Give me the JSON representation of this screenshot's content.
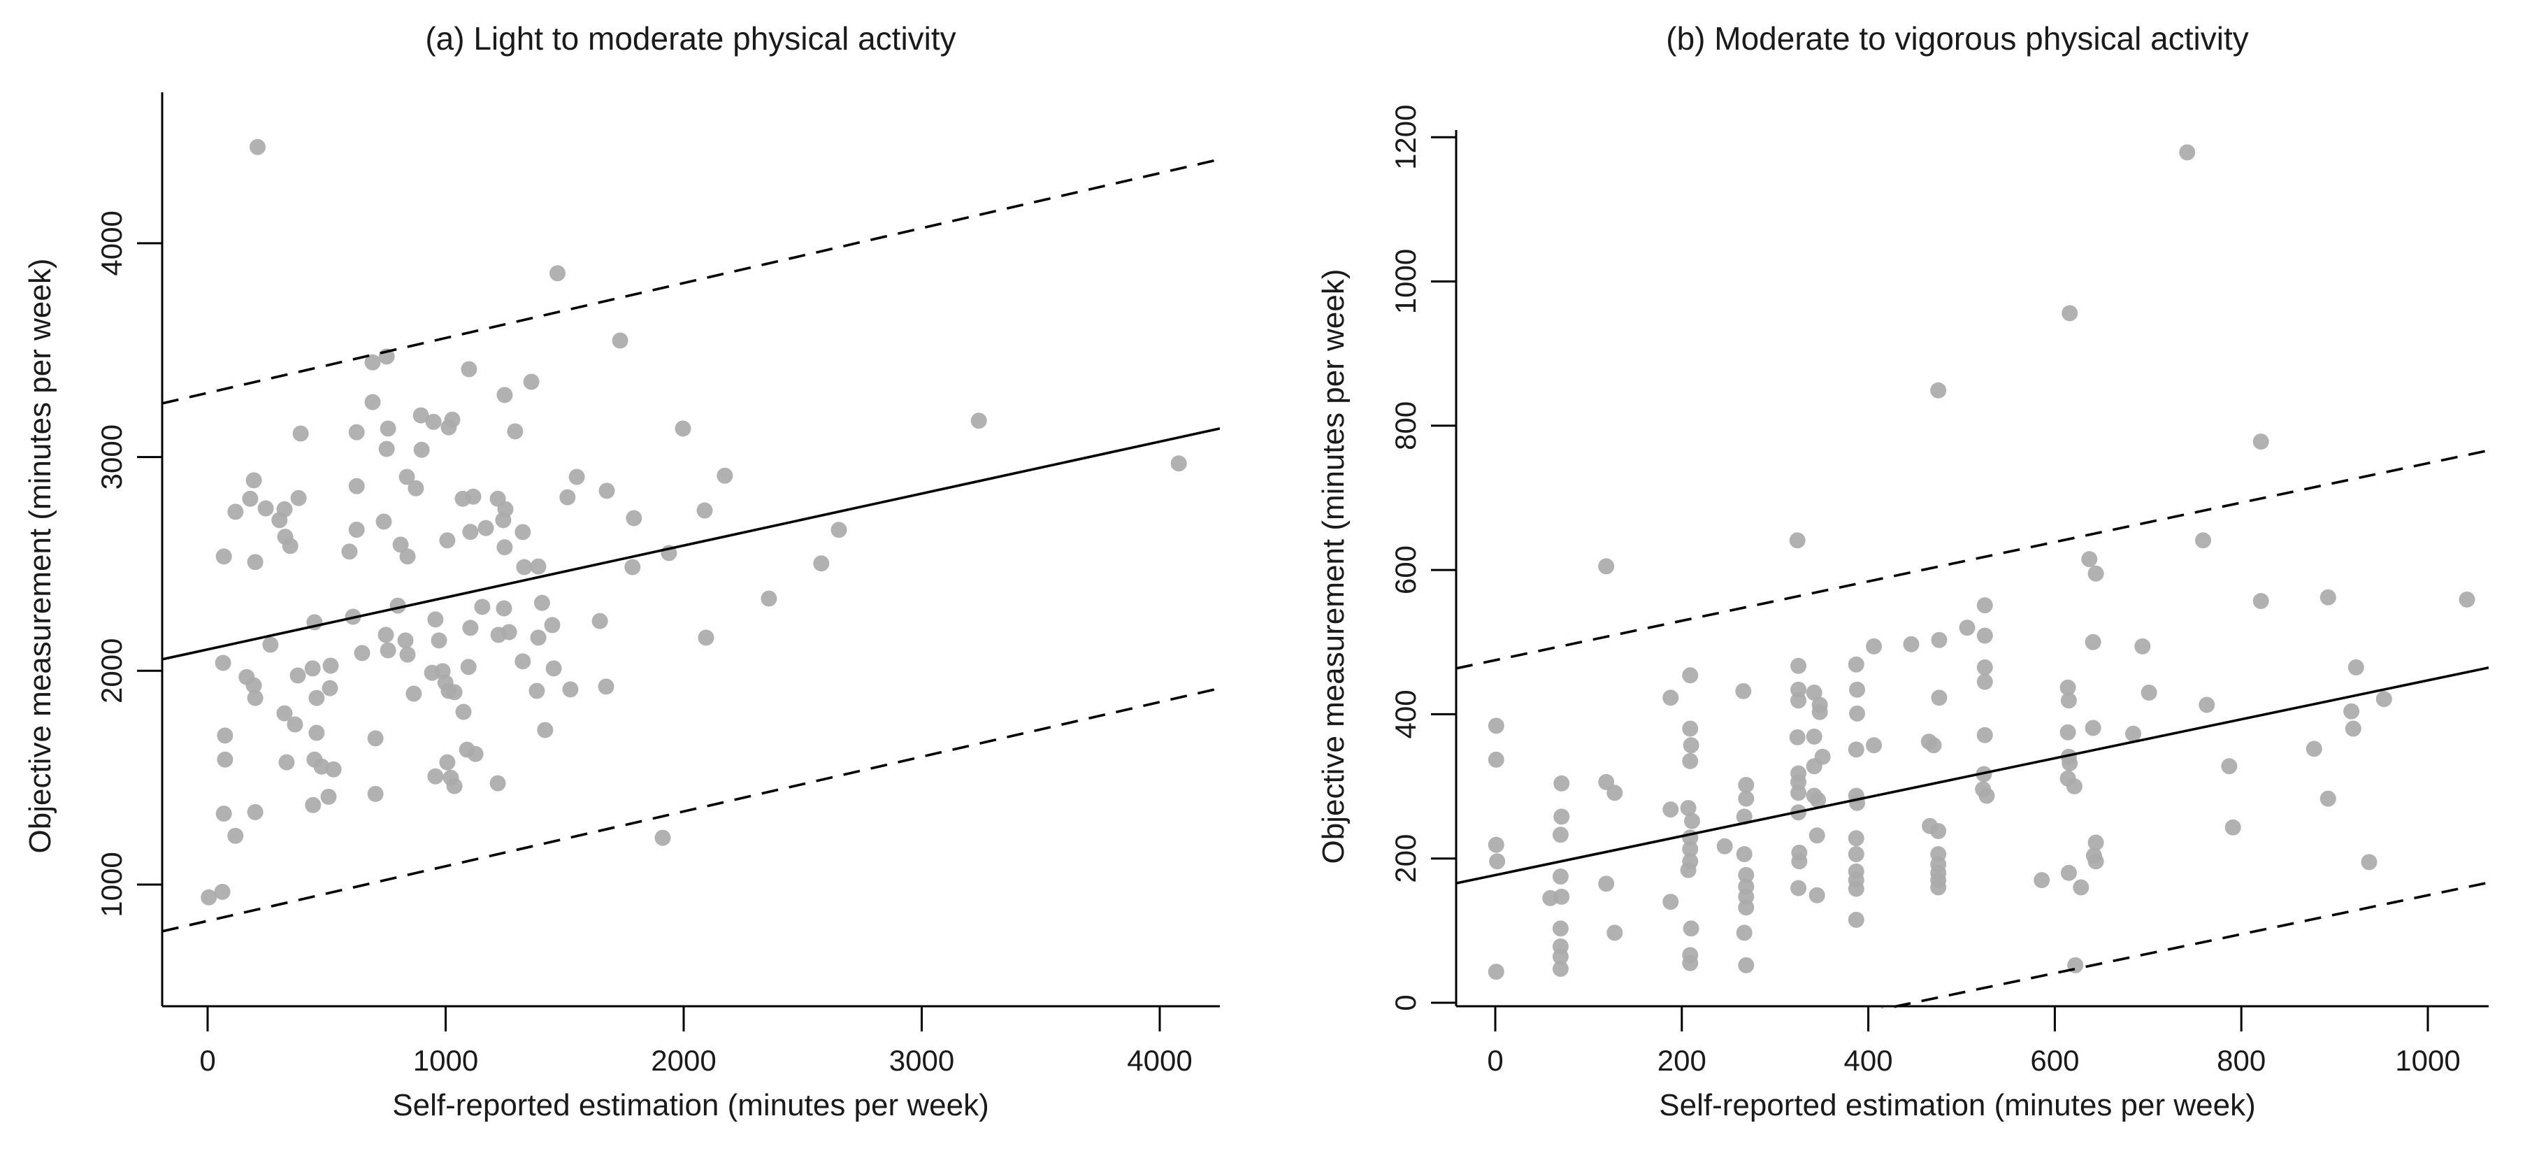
{
  "figure": {
    "background": "#ffffff",
    "point_color": "#aaaaaa",
    "line_color": "#000000",
    "axis_color": "#000000"
  },
  "chart_data": [
    {
      "type": "scatter",
      "title": "(a) Light to moderate physical activity",
      "xlabel": "Self-reported estimation (minutes per week)",
      "ylabel": "Objective measurement (minutes per week)",
      "x_ticks": [
        0,
        1000,
        2000,
        3000,
        4000
      ],
      "y_ticks": [
        1000,
        2000,
        3000,
        4000
      ],
      "xlim": [
        0,
        4000
      ],
      "ylim": [
        1000,
        4000
      ],
      "grid": false,
      "legend": "none",
      "lines": [
        {
          "name": "regression-line",
          "style": "solid",
          "intercept": 2100,
          "slope": 0.243
        },
        {
          "name": "upper-limit-line",
          "style": "dashed",
          "intercept": 3300,
          "slope": 0.257
        },
        {
          "name": "lower-limit-line",
          "style": "dashed",
          "intercept": 830,
          "slope": 0.256
        }
      ],
      "points": [
        [
          210,
          4450
        ],
        [
          693,
          3443
        ],
        [
          752,
          3470
        ],
        [
          1098,
          3411
        ],
        [
          1248,
          3290
        ],
        [
          693,
          3257
        ],
        [
          896,
          3195
        ],
        [
          949,
          3165
        ],
        [
          1028,
          3175
        ],
        [
          1013,
          3139
        ],
        [
          391,
          3110
        ],
        [
          626,
          3116
        ],
        [
          758,
          3133
        ],
        [
          1292,
          3120
        ],
        [
          752,
          3038
        ],
        [
          899,
          3034
        ],
        [
          837,
          2907
        ],
        [
          626,
          2864
        ],
        [
          875,
          2854
        ],
        [
          1072,
          2805
        ],
        [
          194,
          2891
        ],
        [
          117,
          2744
        ],
        [
          179,
          2805
        ],
        [
          244,
          2760
        ],
        [
          323,
          2756
        ],
        [
          382,
          2808
        ],
        [
          302,
          2705
        ],
        [
          326,
          2627
        ],
        [
          347,
          2584
        ],
        [
          626,
          2660
        ],
        [
          596,
          2558
        ],
        [
          740,
          2698
        ],
        [
          811,
          2590
        ],
        [
          840,
          2535
        ],
        [
          68,
          2535
        ],
        [
          200,
          2509
        ],
        [
          1116,
          2815
        ],
        [
          1219,
          2805
        ],
        [
          1251,
          2756
        ],
        [
          1104,
          2650
        ],
        [
          1169,
          2668
        ],
        [
          1242,
          2705
        ],
        [
          1007,
          2610
        ],
        [
          1248,
          2578
        ],
        [
          1470,
          3860
        ],
        [
          1733,
          3545
        ],
        [
          1360,
          3352
        ],
        [
          1997,
          3133
        ],
        [
          1551,
          2907
        ],
        [
          2173,
          2913
        ],
        [
          1512,
          2812
        ],
        [
          1677,
          2842
        ],
        [
          1791,
          2714
        ],
        [
          2088,
          2750
        ],
        [
          1324,
          2649
        ],
        [
          1330,
          2485
        ],
        [
          1389,
          2488
        ],
        [
          1785,
          2485
        ],
        [
          1938,
          2551
        ],
        [
          2652,
          2659
        ],
        [
          2578,
          2502
        ],
        [
          2358,
          2338
        ],
        [
          1405,
          2318
        ],
        [
          449,
          2227
        ],
        [
          611,
          2253
        ],
        [
          799,
          2305
        ],
        [
          1154,
          2299
        ],
        [
          1245,
          2292
        ],
        [
          65,
          2037
        ],
        [
          264,
          2122
        ],
        [
          164,
          1971
        ],
        [
          194,
          1932
        ],
        [
          200,
          1873
        ],
        [
          379,
          1978
        ],
        [
          441,
          2011
        ],
        [
          458,
          1873
        ],
        [
          517,
          2024
        ],
        [
          649,
          2083
        ],
        [
          749,
          2168
        ],
        [
          831,
          2142
        ],
        [
          840,
          2076
        ],
        [
          758,
          2096
        ],
        [
          866,
          1893
        ],
        [
          514,
          1919
        ],
        [
          323,
          1801
        ],
        [
          367,
          1749
        ],
        [
          458,
          1710
        ],
        [
          73,
          1697
        ],
        [
          73,
          1585
        ],
        [
          332,
          1572
        ],
        [
          449,
          1585
        ],
        [
          479,
          1552
        ],
        [
          529,
          1539
        ],
        [
          705,
          1684
        ],
        [
          705,
          1424
        ],
        [
          443,
          1372
        ],
        [
          508,
          1411
        ],
        [
          68,
          1332
        ],
        [
          200,
          1339
        ],
        [
          117,
          1228
        ],
        [
          5,
          940
        ],
        [
          62,
          966
        ],
        [
          957,
          2240
        ],
        [
          972,
          2142
        ],
        [
          987,
          1998
        ],
        [
          943,
          1991
        ],
        [
          999,
          1945
        ],
        [
          1013,
          1906
        ],
        [
          1037,
          1900
        ],
        [
          1096,
          2018
        ],
        [
          1222,
          2168
        ],
        [
          1104,
          2201
        ],
        [
          1075,
          1808
        ],
        [
          1090,
          1631
        ],
        [
          1125,
          1611
        ],
        [
          1007,
          1572
        ],
        [
          1022,
          1500
        ],
        [
          1037,
          1461
        ],
        [
          957,
          1506
        ],
        [
          1219,
          1474
        ],
        [
          1266,
          2181
        ],
        [
          1448,
          2214
        ],
        [
          1648,
          2233
        ],
        [
          1389,
          2155
        ],
        [
          1324,
          2044
        ],
        [
          1454,
          2011
        ],
        [
          1383,
          1906
        ],
        [
          1524,
          1913
        ],
        [
          1674,
          1926
        ],
        [
          1418,
          1723
        ],
        [
          2094,
          2155
        ],
        [
          1912,
          1219
        ],
        [
          3240,
          3170
        ],
        [
          4080,
          2970
        ]
      ]
    },
    {
      "type": "scatter",
      "title": "(b) Moderate to vigorous physical activity",
      "xlabel": "Self-reported estimation (minutes per week)",
      "ylabel": "Objective measurement (minutes per week)",
      "x_ticks": [
        0,
        200,
        400,
        600,
        800,
        1000
      ],
      "y_ticks": [
        0,
        200,
        400,
        600,
        800,
        1000,
        1200
      ],
      "xlim": [
        0,
        1000
      ],
      "ylim": [
        0,
        1200
      ],
      "grid": false,
      "legend": "none",
      "lines": [
        {
          "name": "regression-line",
          "style": "solid",
          "intercept": 177,
          "slope": 0.27
        },
        {
          "name": "upper-limit-line",
          "style": "dashed",
          "intercept": 475,
          "slope": 0.273
        },
        {
          "name": "lower-limit-line",
          "style": "dashed",
          "intercept": -121,
          "slope": 0.27
        }
      ],
      "points": [
        [
          119,
          605
        ],
        [
          324,
          641
        ],
        [
          616,
          956
        ],
        [
          475,
          849
        ],
        [
          525,
          551
        ],
        [
          506,
          520
        ],
        [
          637,
          615
        ],
        [
          644,
          595
        ],
        [
          641,
          500
        ],
        [
          1,
          384
        ],
        [
          1,
          337
        ],
        [
          1,
          219
        ],
        [
          2,
          196
        ],
        [
          1,
          43
        ],
        [
          71,
          304
        ],
        [
          119,
          306
        ],
        [
          128,
          291
        ],
        [
          71,
          258
        ],
        [
          70,
          233
        ],
        [
          70,
          175
        ],
        [
          59,
          145
        ],
        [
          71,
          147
        ],
        [
          70,
          103
        ],
        [
          70,
          78
        ],
        [
          70,
          64
        ],
        [
          70,
          47
        ],
        [
          119,
          165
        ],
        [
          128,
          97
        ],
        [
          188,
          423
        ],
        [
          209,
          454
        ],
        [
          209,
          380
        ],
        [
          210,
          357
        ],
        [
          209,
          335
        ],
        [
          188,
          268
        ],
        [
          207,
          270
        ],
        [
          211,
          252
        ],
        [
          209,
          229
        ],
        [
          209,
          213
        ],
        [
          209,
          196
        ],
        [
          207,
          184
        ],
        [
          188,
          140
        ],
        [
          210,
          103
        ],
        [
          209,
          66
        ],
        [
          209,
          55
        ],
        [
          266,
          432
        ],
        [
          269,
          302
        ],
        [
          269,
          283
        ],
        [
          267,
          258
        ],
        [
          246,
          217
        ],
        [
          267,
          206
        ],
        [
          269,
          177
        ],
        [
          269,
          161
        ],
        [
          269,
          147
        ],
        [
          269,
          132
        ],
        [
          267,
          97
        ],
        [
          269,
          52
        ],
        [
          325,
          467
        ],
        [
          325,
          434
        ],
        [
          325,
          419
        ],
        [
          324,
          368
        ],
        [
          325,
          318
        ],
        [
          325,
          306
        ],
        [
          325,
          291
        ],
        [
          325,
          264
        ],
        [
          326,
          208
        ],
        [
          326,
          196
        ],
        [
          325,
          159
        ],
        [
          406,
          494
        ],
        [
          446,
          497
        ],
        [
          476,
          503
        ],
        [
          525,
          509
        ],
        [
          387,
          469
        ],
        [
          525,
          465
        ],
        [
          525,
          445
        ],
        [
          342,
          430
        ],
        [
          348,
          413
        ],
        [
          348,
          403
        ],
        [
          388,
          434
        ],
        [
          388,
          401
        ],
        [
          476,
          423
        ],
        [
          342,
          369
        ],
        [
          351,
          341
        ],
        [
          387,
          351
        ],
        [
          406,
          357
        ],
        [
          465,
          362
        ],
        [
          470,
          357
        ],
        [
          525,
          371
        ],
        [
          342,
          328
        ],
        [
          342,
          287
        ],
        [
          346,
          281
        ],
        [
          387,
          287
        ],
        [
          388,
          277
        ],
        [
          524,
          317
        ],
        [
          523,
          296
        ],
        [
          527,
          287
        ],
        [
          614,
          437
        ],
        [
          615,
          419
        ],
        [
          614,
          375
        ],
        [
          615,
          341
        ],
        [
          616,
          332
        ],
        [
          614,
          311
        ],
        [
          621,
          300
        ],
        [
          641,
          381
        ],
        [
          684,
          373
        ],
        [
          694,
          494
        ],
        [
          701,
          430
        ],
        [
          345,
          232
        ],
        [
          387,
          228
        ],
        [
          387,
          206
        ],
        [
          387,
          182
        ],
        [
          387,
          170
        ],
        [
          387,
          158
        ],
        [
          466,
          245
        ],
        [
          475,
          238
        ],
        [
          475,
          206
        ],
        [
          475,
          192
        ],
        [
          475,
          180
        ],
        [
          475,
          170
        ],
        [
          475,
          160
        ],
        [
          586,
          170
        ],
        [
          615,
          180
        ],
        [
          644,
          222
        ],
        [
          642,
          204
        ],
        [
          644,
          196
        ],
        [
          628,
          160
        ],
        [
          345,
          149
        ],
        [
          387,
          115
        ],
        [
          622,
          52
        ],
        [
          742,
          1179
        ],
        [
          821,
          778
        ],
        [
          759,
          641
        ],
        [
          821,
          557
        ],
        [
          893,
          562
        ],
        [
          1042,
          559
        ],
        [
          763,
          413
        ],
        [
          923,
          465
        ],
        [
          953,
          421
        ],
        [
          918,
          404
        ],
        [
          920,
          380
        ],
        [
          878,
          352
        ],
        [
          787,
          328
        ],
        [
          893,
          283
        ],
        [
          791,
          243
        ],
        [
          937,
          195
        ]
      ]
    }
  ]
}
